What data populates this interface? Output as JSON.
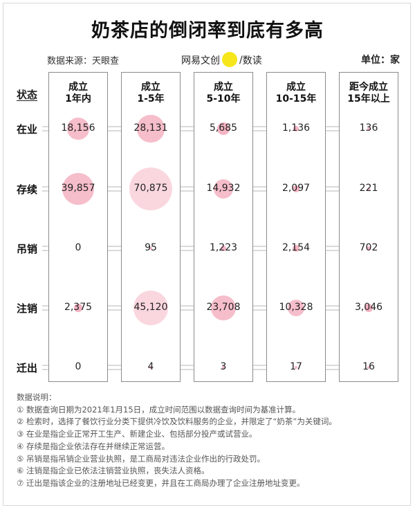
{
  "title": "奶茶店的倒闭率到底有多高",
  "source": "数据来源：天眼查",
  "brand": {
    "left": "网易文创",
    "right": "数读",
    "separator": "/"
  },
  "unit": "单位：家",
  "colors": {
    "bubble": "#f3a7b8",
    "border": "#8a8a8a",
    "connector": "#b5b5b5"
  },
  "chart_data": {
    "type": "bubble-table",
    "row_header": "状态",
    "columns": [
      {
        "line1": "成立",
        "line2": "1年内"
      },
      {
        "line1": "成立",
        "line2": "1-5年"
      },
      {
        "line1": "成立",
        "line2": "5-10年"
      },
      {
        "line1": "成立",
        "line2": "10-15年"
      },
      {
        "line1": "距今成立",
        "line2": "15年以上"
      }
    ],
    "rows": [
      {
        "label": "在业",
        "values": [
          18156,
          28131,
          5685,
          1136,
          136
        ],
        "display": [
          "18,156",
          "28,131",
          "5,685",
          "1,136",
          "136"
        ]
      },
      {
        "label": "存续",
        "values": [
          39857,
          70875,
          14932,
          2097,
          221
        ],
        "display": [
          "39,857",
          "70,875",
          "14,932",
          "2,097",
          "221"
        ]
      },
      {
        "label": "吊销",
        "values": [
          0,
          95,
          1223,
          2154,
          702
        ],
        "display": [
          "0",
          "95",
          "1,223",
          "2,154",
          "702"
        ]
      },
      {
        "label": "注销",
        "values": [
          2375,
          45120,
          23708,
          10328,
          3046
        ],
        "display": [
          "2,375",
          "45,120",
          "23,708",
          "10,328",
          "3,046"
        ]
      },
      {
        "label": "迁出",
        "values": [
          0,
          4,
          3,
          17,
          16
        ],
        "display": [
          "0",
          "4",
          "3",
          "17",
          "16"
        ]
      }
    ]
  },
  "notes": [
    "数据说明：",
    "① 数据查询日期为2021年1月15日，成立时间范围以数据查询时间为基准计算。",
    "② 检索时，选择了餐饮行业分类下提供冷饮及饮料服务的企业，并限定了“奶茶”为关键词。",
    "③ 在业是指企业正常开工生产、新建企业、包括部分投产或试营业。",
    "④ 存续是指企业依法存在并继续正常运营。",
    "⑤ 吊销是指吊销企业营业执照，是工商局对违法企业作出的行政处罚。",
    "⑥ 注销是指企业已依法注销营业执照，丧失法人资格。",
    "⑦ 迁出是指该企业的注册地址已经变更，并且在工商局办理了企业注册地址变更。"
  ]
}
